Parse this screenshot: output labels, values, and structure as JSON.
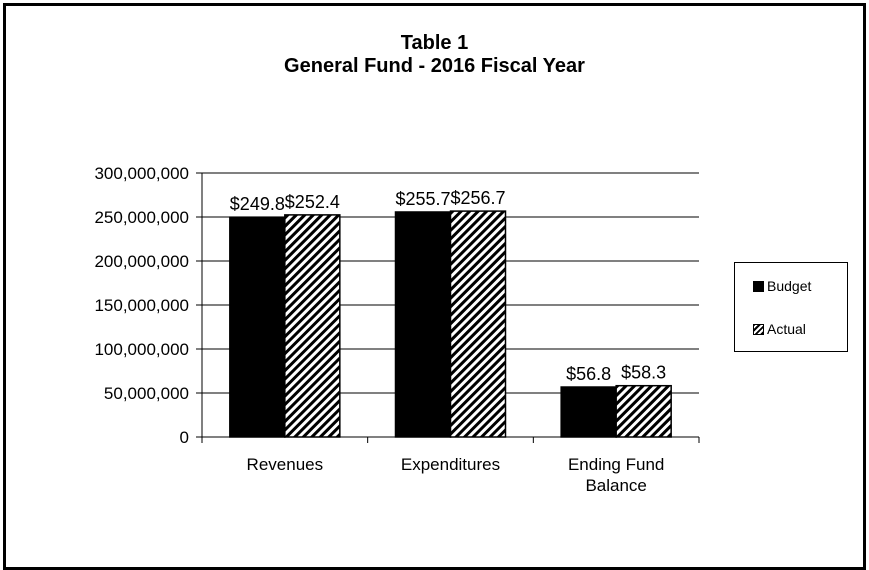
{
  "chart_data": {
    "type": "bar",
    "title_line1": "Table 1",
    "title_line2": "General Fund - 2016 Fiscal Year",
    "categories": [
      "Revenues",
      "Expenditures",
      "Ending Fund Balance"
    ],
    "series": [
      {
        "name": "Budget",
        "values": [
          249800000,
          255700000,
          56800000
        ],
        "labels": [
          "$249.8",
          "$255.7",
          "$56.8"
        ],
        "color": "#000000"
      },
      {
        "name": "Actual",
        "values": [
          252400000,
          256700000,
          58300000
        ],
        "labels": [
          "$252.4",
          "$256.7",
          "$58.3"
        ],
        "color": "#000000",
        "pattern": "diagonal-hatch"
      }
    ],
    "ylim": [
      0,
      300000000
    ],
    "yticks": [
      "0",
      "50,000,000",
      "100,000,000",
      "150,000,000",
      "200,000,000",
      "250,000,000",
      "300,000,000"
    ],
    "grid": true,
    "legend_position": "right"
  }
}
